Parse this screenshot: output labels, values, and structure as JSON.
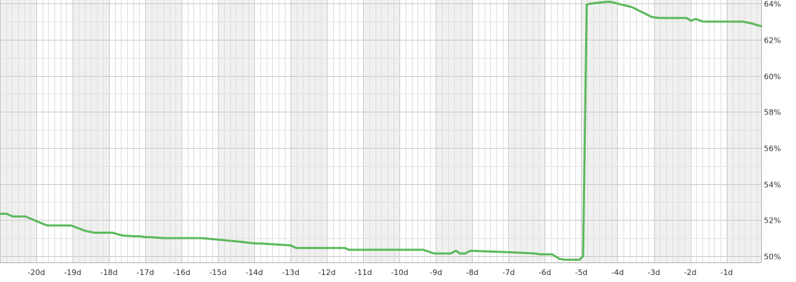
{
  "chart_data": {
    "type": "line",
    "title": "",
    "xlabel": "",
    "ylabel": "",
    "grid": true,
    "x_tick_labels": [
      "-20d",
      "-19d",
      "-18d",
      "-17d",
      "-16d",
      "-15d",
      "-14d",
      "-13d",
      "-12d",
      "-11d",
      "-10d",
      "-9d",
      "-8d",
      "-7d",
      "-6d",
      "-5d",
      "-4d",
      "-3d",
      "-2d",
      "-1d"
    ],
    "x_tick_values": [
      -20,
      -19,
      -18,
      -17,
      -16,
      -15,
      -14,
      -13,
      -12,
      -11,
      -10,
      -9,
      -8,
      -7,
      -6,
      -5,
      -4,
      -3,
      -2,
      -1
    ],
    "y_tick_labels": [
      "50%",
      "52%",
      "54%",
      "56%",
      "58%",
      "60%",
      "62%",
      "64%"
    ],
    "y_tick_values": [
      50,
      52,
      54,
      56,
      58,
      60,
      62,
      64
    ],
    "xlim": [
      -21.0,
      -0.05
    ],
    "ylim": [
      49.65,
      64.2
    ],
    "series": [
      {
        "color": "#5cb85c",
        "x": [
          -21.0,
          -20.82,
          -20.65,
          -20.3,
          -20.12,
          -19.95,
          -19.7,
          -19.4,
          -19.05,
          -18.85,
          -18.65,
          -18.4,
          -17.9,
          -17.65,
          -17.35,
          -17.15,
          -16.98,
          -16.85,
          -16.5,
          -15.45,
          -14.9,
          -14.4,
          -13.95,
          -13.8,
          -13.0,
          -12.85,
          -11.5,
          -11.4,
          -9.35,
          -9.05,
          -8.6,
          -8.45,
          -8.35,
          -8.2,
          -8.05,
          -6.8,
          -6.3,
          -6.1,
          -5.8,
          -5.6,
          -5.45,
          -5.05,
          -4.95,
          -4.85,
          -4.75,
          -4.3,
          -4.2,
          -3.7,
          -3.6,
          -3.3,
          -3.05,
          -2.85,
          -2.1,
          -1.98,
          -1.85,
          -1.65,
          -1.45,
          -0.55,
          -0.3,
          -0.15,
          -0.05
        ],
        "y": [
          52.35,
          52.35,
          52.2,
          52.2,
          52.05,
          51.9,
          51.7,
          51.7,
          51.7,
          51.55,
          51.4,
          51.3,
          51.3,
          51.15,
          51.1,
          51.1,
          51.05,
          51.05,
          51.0,
          51.0,
          50.9,
          50.8,
          50.7,
          50.7,
          50.6,
          50.45,
          50.45,
          50.35,
          50.35,
          50.15,
          50.15,
          50.3,
          50.15,
          50.15,
          50.3,
          50.2,
          50.15,
          50.1,
          50.1,
          49.85,
          49.8,
          49.8,
          50.0,
          63.95,
          64.0,
          64.1,
          64.1,
          63.85,
          63.8,
          63.5,
          63.25,
          63.2,
          63.2,
          63.05,
          63.15,
          63.0,
          63.0,
          63.0,
          62.9,
          62.8,
          62.75
        ]
      }
    ]
  }
}
